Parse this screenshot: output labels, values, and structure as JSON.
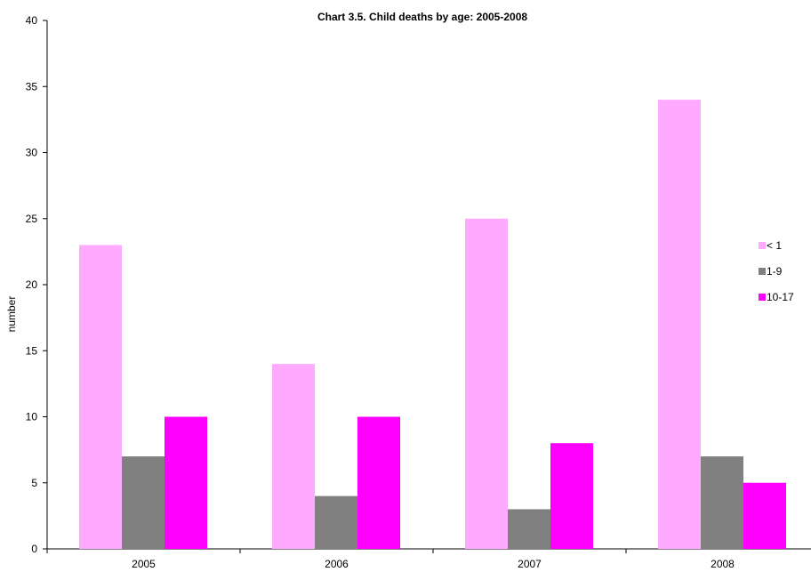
{
  "chart_data": {
    "type": "bar",
    "title": "Chart 3.5.  Child deaths by age: 2005-2008",
    "xlabel": "",
    "ylabel": "number",
    "categories": [
      "2005",
      "2006",
      "2007",
      "2008"
    ],
    "series": [
      {
        "name": "< 1",
        "values": [
          23,
          14,
          25,
          34
        ],
        "color": "#ffaaff"
      },
      {
        "name": "1-9",
        "values": [
          7,
          4,
          3,
          7
        ],
        "color": "#808080"
      },
      {
        "name": "10-17",
        "values": [
          10,
          10,
          8,
          5
        ],
        "color": "#ff00ff"
      }
    ],
    "ylim": [
      0,
      40
    ],
    "yticks": [
      0,
      5,
      10,
      15,
      20,
      25,
      30,
      35,
      40
    ],
    "grid": false,
    "legend_position": "right"
  }
}
